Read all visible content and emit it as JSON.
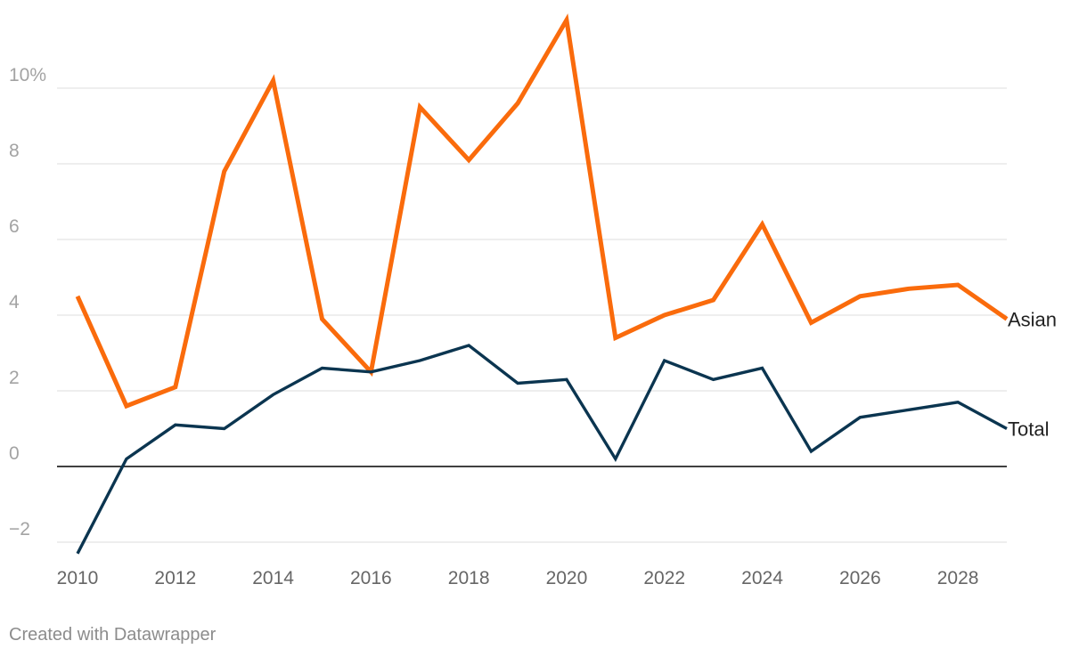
{
  "chart_data": {
    "type": "line",
    "x": [
      2010,
      2011,
      2012,
      2013,
      2014,
      2015,
      2016,
      2017,
      2018,
      2019,
      2020,
      2021,
      2022,
      2023,
      2024,
      2025,
      2026,
      2027,
      2028,
      2029
    ],
    "series": [
      {
        "name": "Asian",
        "color": "#fa6b0c",
        "values": [
          4.5,
          1.6,
          2.1,
          7.8,
          10.2,
          3.9,
          2.5,
          9.5,
          8.1,
          9.6,
          11.8,
          3.4,
          4.0,
          4.4,
          6.4,
          3.8,
          4.5,
          4.7,
          4.8,
          3.9
        ]
      },
      {
        "name": "Total",
        "color": "#0b3550",
        "values": [
          -2.3,
          0.2,
          1.1,
          1.0,
          1.9,
          2.6,
          2.5,
          2.8,
          3.2,
          2.2,
          2.3,
          0.2,
          2.8,
          2.3,
          2.6,
          0.4,
          1.3,
          1.5,
          1.7,
          1.0
        ]
      }
    ],
    "y_ticks": [
      {
        "value": -2,
        "label": "−2"
      },
      {
        "value": 0,
        "label": "0"
      },
      {
        "value": 2,
        "label": "2"
      },
      {
        "value": 4,
        "label": "4"
      },
      {
        "value": 6,
        "label": "6"
      },
      {
        "value": 8,
        "label": "8"
      },
      {
        "value": 10,
        "label": "10%"
      }
    ],
    "x_ticks": [
      2010,
      2012,
      2014,
      2016,
      2018,
      2020,
      2022,
      2024,
      2026,
      2028
    ],
    "xlim": [
      2010,
      2029
    ],
    "ylim": [
      -2.4,
      12
    ],
    "grid": true,
    "legend": "inline labels at line ends"
  },
  "credit": "Created with Datawrapper"
}
